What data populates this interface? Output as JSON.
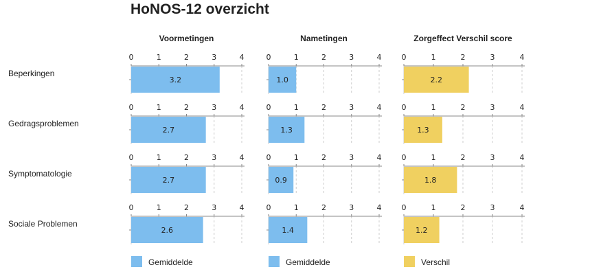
{
  "title": "HoNOS-12 overzicht",
  "chart_data": {
    "type": "bar",
    "orientation": "horizontal",
    "categories": [
      "Beperkingen",
      "Gedragsproblemen",
      "Symptomatologie",
      "Sociale Problemen"
    ],
    "xlim": [
      0,
      4
    ],
    "ticks": [
      "0",
      "1",
      "2",
      "3",
      "4"
    ],
    "grid": true,
    "panels": [
      {
        "title": "Voormetingen",
        "legend": "Gemiddelde",
        "color": "#7dbdee",
        "values": [
          3.2,
          2.7,
          2.7,
          2.6
        ],
        "labels": [
          "3.2",
          "2.7",
          "2.7",
          "2.6"
        ]
      },
      {
        "title": "Nametingen",
        "legend": "Gemiddelde",
        "color": "#7dbdee",
        "values": [
          1.0,
          1.3,
          0.9,
          1.4
        ],
        "labels": [
          "1.0",
          "1.3",
          "0.9",
          "1.4"
        ]
      },
      {
        "title": "Zorgeffect Verschil score",
        "legend": "Verschil",
        "color": "#f0d060",
        "values": [
          2.2,
          1.3,
          1.8,
          1.2
        ],
        "labels": [
          "2.2",
          "1.3",
          "1.8",
          "1.2"
        ]
      }
    ],
    "legend_position": "bottom"
  }
}
